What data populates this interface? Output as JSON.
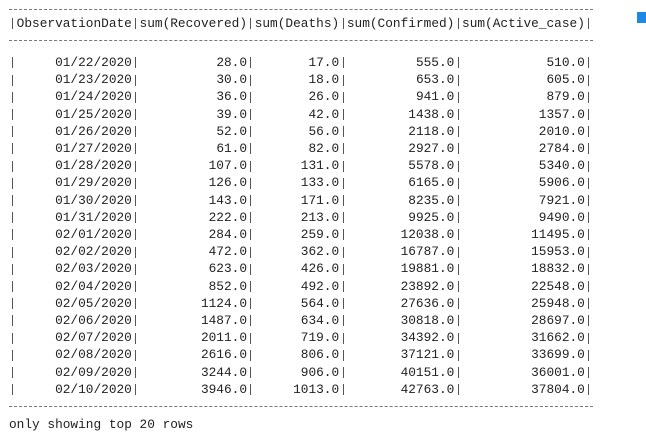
{
  "table": {
    "columns": [
      "ObservationDate",
      "sum(Recovered)",
      "sum(Deaths)",
      "sum(Confirmed)",
      "sum(Active_case)"
    ],
    "rows": [
      [
        "01/22/2020",
        "28.0",
        "17.0",
        "555.0",
        "510.0"
      ],
      [
        "01/23/2020",
        "30.0",
        "18.0",
        "653.0",
        "605.0"
      ],
      [
        "01/24/2020",
        "36.0",
        "26.0",
        "941.0",
        "879.0"
      ],
      [
        "01/25/2020",
        "39.0",
        "42.0",
        "1438.0",
        "1357.0"
      ],
      [
        "01/26/2020",
        "52.0",
        "56.0",
        "2118.0",
        "2010.0"
      ],
      [
        "01/27/2020",
        "61.0",
        "82.0",
        "2927.0",
        "2784.0"
      ],
      [
        "01/28/2020",
        "107.0",
        "131.0",
        "5578.0",
        "5340.0"
      ],
      [
        "01/29/2020",
        "126.0",
        "133.0",
        "6165.0",
        "5906.0"
      ],
      [
        "01/30/2020",
        "143.0",
        "171.0",
        "8235.0",
        "7921.0"
      ],
      [
        "01/31/2020",
        "222.0",
        "213.0",
        "9925.0",
        "9490.0"
      ],
      [
        "02/01/2020",
        "284.0",
        "259.0",
        "12038.0",
        "11495.0"
      ],
      [
        "02/02/2020",
        "472.0",
        "362.0",
        "16787.0",
        "15953.0"
      ],
      [
        "02/03/2020",
        "623.0",
        "426.0",
        "19881.0",
        "18832.0"
      ],
      [
        "02/04/2020",
        "852.0",
        "492.0",
        "23892.0",
        "22548.0"
      ],
      [
        "02/05/2020",
        "1124.0",
        "564.0",
        "27636.0",
        "25948.0"
      ],
      [
        "02/06/2020",
        "1487.0",
        "634.0",
        "30818.0",
        "28697.0"
      ],
      [
        "02/07/2020",
        "2011.0",
        "719.0",
        "34392.0",
        "31662.0"
      ],
      [
        "02/08/2020",
        "2616.0",
        "806.0",
        "37121.0",
        "33699.0"
      ],
      [
        "02/09/2020",
        "3244.0",
        "906.0",
        "40151.0",
        "36001.0"
      ],
      [
        "02/10/2020",
        "3946.0",
        "1013.0",
        "42763.0",
        "37804.0"
      ]
    ]
  },
  "footer": "only showing top 20 rows"
}
